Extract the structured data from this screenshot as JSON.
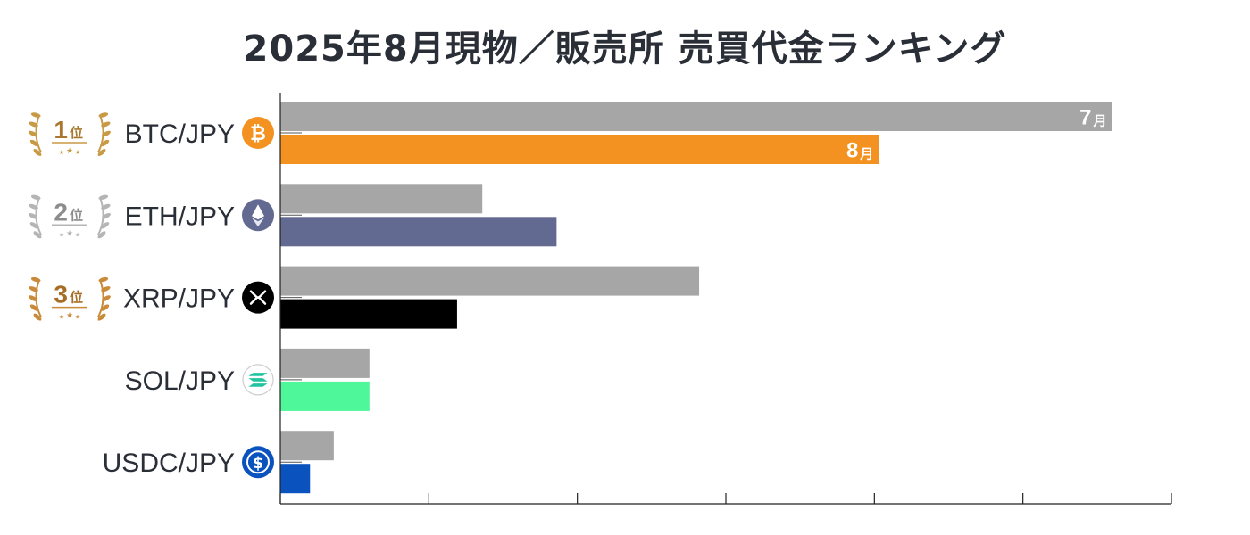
{
  "title": "2025年8月現物／販売所 売買代金ランキング",
  "chart_data": {
    "type": "bar",
    "orientation": "horizontal",
    "title": "2025年8月現物／販売所 売買代金ランキング",
    "categories": [
      "BTC/JPY",
      "ETH/JPY",
      "XRP/JPY",
      "SOL/JPY",
      "USDC/JPY"
    ],
    "series": [
      {
        "name": "7月",
        "color": "#a6a6a6",
        "values": [
          5.6,
          1.36,
          2.82,
          0.6,
          0.36
        ]
      },
      {
        "name": "8月",
        "color": "by-category",
        "values": [
          4.03,
          1.86,
          1.19,
          0.6,
          0.2
        ]
      }
    ],
    "august_colors": [
      "#f39220",
      "#636a92",
      "#000000",
      "#4df79a",
      "#0a52be"
    ],
    "bar_labels": {
      "top_bar": {
        "num": "7",
        "unit": "月"
      },
      "second_bar": {
        "num": "8",
        "unit": "月"
      }
    },
    "xlim": [
      0,
      6
    ],
    "x_tick_count": 6,
    "x_tick_labels": [],
    "grid": false,
    "legend": "none"
  },
  "ranks": [
    {
      "num": "1",
      "unit": "位",
      "style": "gold"
    },
    {
      "num": "2",
      "unit": "位",
      "style": "silver"
    },
    {
      "num": "3",
      "unit": "位",
      "style": "bronze"
    }
  ],
  "coin_icons": [
    "bitcoin-icon",
    "ethereum-icon",
    "xrp-icon",
    "solana-icon",
    "usdc-icon"
  ]
}
